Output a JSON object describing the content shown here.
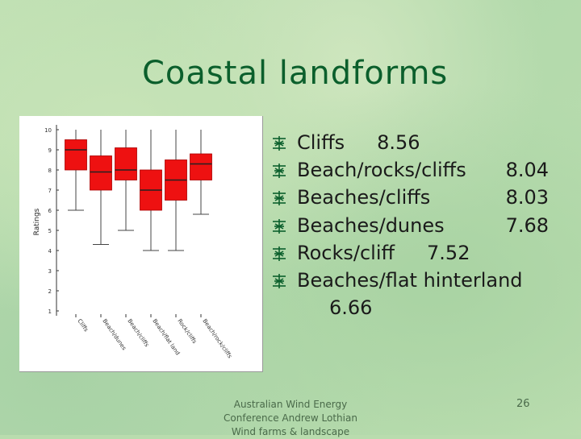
{
  "slide": {
    "title": "Coastal landforms",
    "footer_lines": [
      "Australian Wind Energy",
      "Conference Andrew Lothian",
      "Wind farms & landscape"
    ],
    "page_number": "26",
    "accent_color": "#0b5f2c",
    "box_color": "#ee1111"
  },
  "bullets": [
    {
      "label": "Cliffs",
      "value": "8.56"
    },
    {
      "label": "Beach/rocks/cliffs",
      "value": "8.04"
    },
    {
      "label": "Beaches/cliffs",
      "value": "8.03"
    },
    {
      "label": "Beaches/dunes",
      "value": "7.68"
    },
    {
      "label": "Rocks/cliff",
      "value": "7.52"
    },
    {
      "label": "Beaches/flat hinterland",
      "value": "6.66"
    }
  ],
  "chart_data": {
    "type": "boxplot",
    "ylabel": "Ratings",
    "ylim": [
      1,
      10
    ],
    "yticks": [
      "1",
      "2",
      "3",
      "4",
      "5",
      "6",
      "7",
      "8",
      "9",
      "10"
    ],
    "categories": [
      "Cliffs",
      "Beach/dunes",
      "Beach/cliffs",
      "Beach/flat land",
      "Rock/cliffs",
      "Beach/rock/cliffs"
    ],
    "boxes": [
      {
        "min": 6.0,
        "q1": 8.0,
        "median": 9.0,
        "q3": 9.5,
        "max": 10.0
      },
      {
        "min": 4.3,
        "q1": 7.0,
        "median": 7.9,
        "q3": 8.7,
        "max": 10.0
      },
      {
        "min": 5.0,
        "q1": 7.5,
        "median": 8.0,
        "q3": 9.1,
        "max": 10.0
      },
      {
        "min": 4.0,
        "q1": 6.0,
        "median": 7.0,
        "q3": 8.0,
        "max": 10.0
      },
      {
        "min": 4.0,
        "q1": 6.5,
        "median": 7.5,
        "q3": 8.5,
        "max": 10.0
      },
      {
        "min": 5.8,
        "q1": 7.5,
        "median": 8.3,
        "q3": 8.8,
        "max": 10.0
      }
    ]
  }
}
